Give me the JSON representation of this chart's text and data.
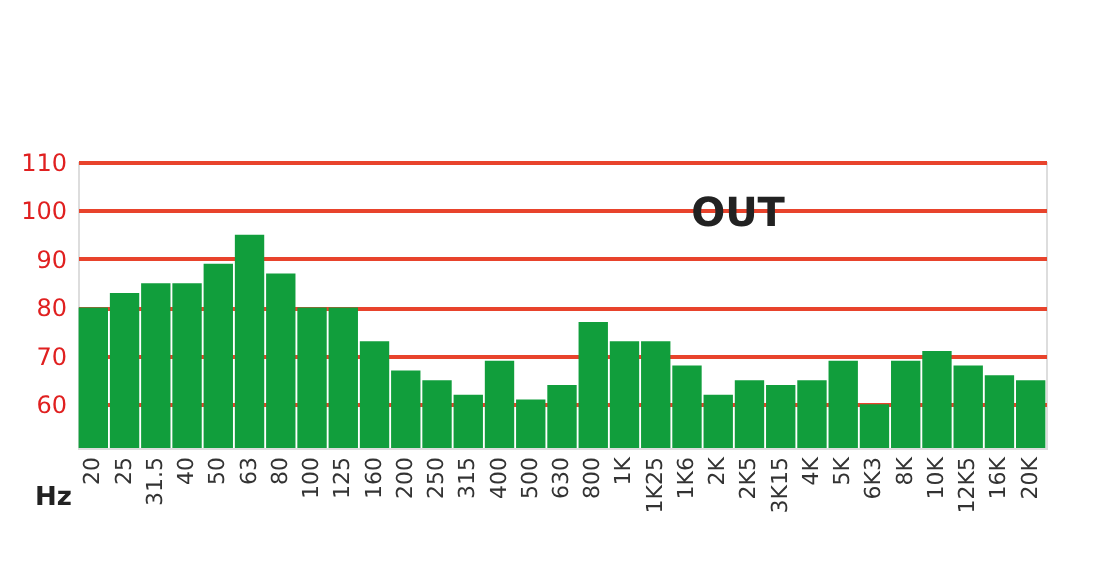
{
  "chart_data": {
    "type": "bar",
    "categories": [
      "20",
      "25",
      "31.5",
      "40",
      "50",
      "63",
      "80",
      "100",
      "125",
      "160",
      "200",
      "250",
      "315",
      "400",
      "500",
      "630",
      "800",
      "1K",
      "1K25",
      "1K6",
      "2K",
      "2K5",
      "3K15",
      "4K",
      "5K",
      "6K3",
      "8K",
      "10K",
      "12K5",
      "16K",
      "20K"
    ],
    "values": [
      80,
      83,
      85,
      85,
      89,
      95,
      87,
      80,
      80,
      73,
      67,
      65,
      62,
      69,
      61,
      64,
      77,
      73,
      73,
      68,
      62,
      65,
      64,
      65,
      69,
      60,
      69,
      71,
      68,
      66,
      65
    ],
    "color": "#119e3c",
    "xlabel": "Hz",
    "annotations": [
      "OUT"
    ],
    "ylim": [
      51,
      110
    ],
    "yticks": [
      60,
      70,
      80,
      90,
      100,
      110
    ],
    "grid": "y"
  }
}
